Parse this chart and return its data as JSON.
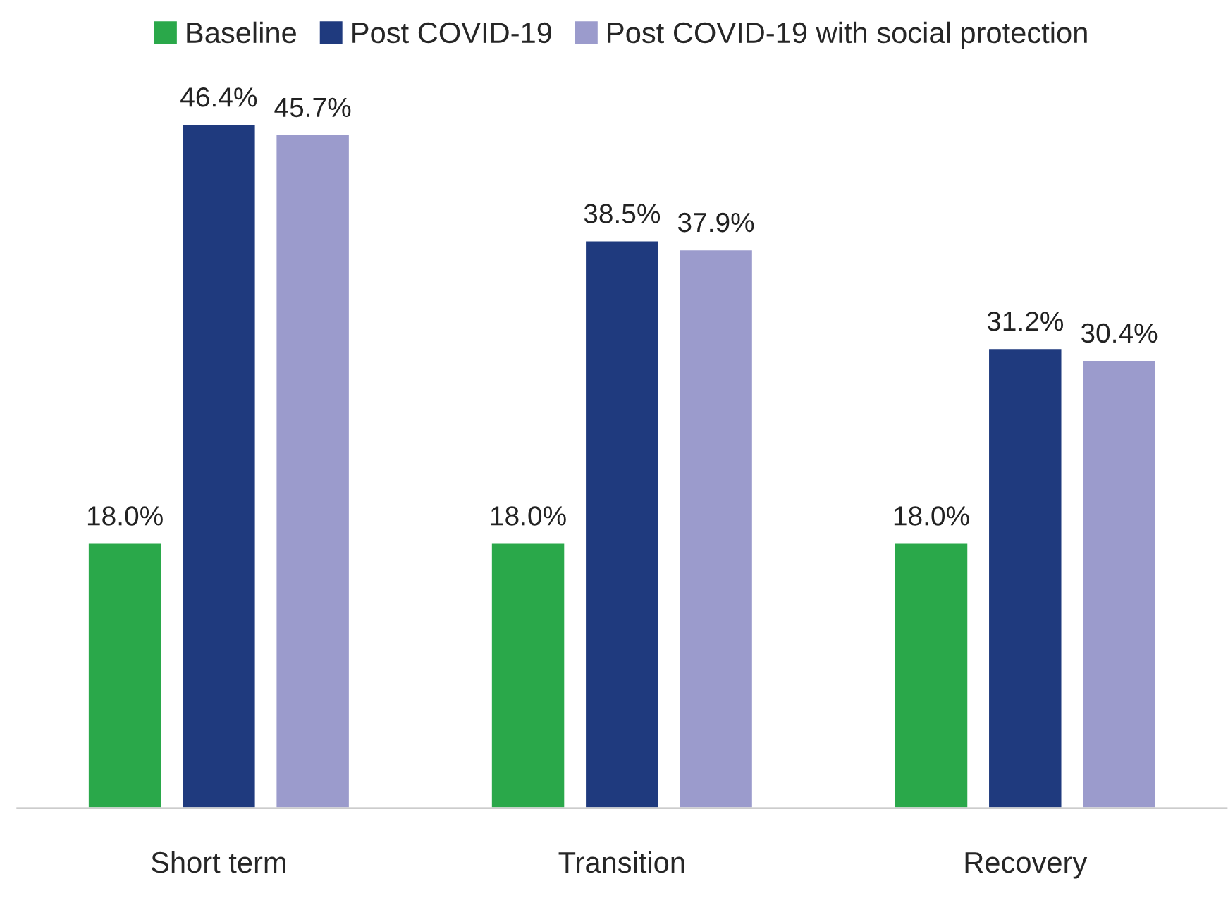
{
  "chart_data": {
    "type": "bar",
    "categories": [
      "Short term",
      "Transition",
      "Recovery"
    ],
    "series": [
      {
        "name": "Baseline",
        "color": "#2aa84a",
        "values": [
          18.0,
          18.0,
          18.0
        ],
        "value_labels": [
          "18.0%",
          "18.0%",
          "18.0%"
        ]
      },
      {
        "name": "Post COVID-19",
        "color": "#1f3a7e",
        "values": [
          46.4,
          38.5,
          31.2
        ],
        "value_labels": [
          "46.4%",
          "38.5%",
          "31.2%"
        ]
      },
      {
        "name": "Post COVID-19 with social protection",
        "color": "#9b9bcc",
        "values": [
          45.7,
          37.9,
          30.4
        ],
        "value_labels": [
          "45.7%",
          "37.9%",
          "30.4%"
        ]
      }
    ],
    "tick_labels": "x",
    "legend": "top",
    "grid": false
  }
}
